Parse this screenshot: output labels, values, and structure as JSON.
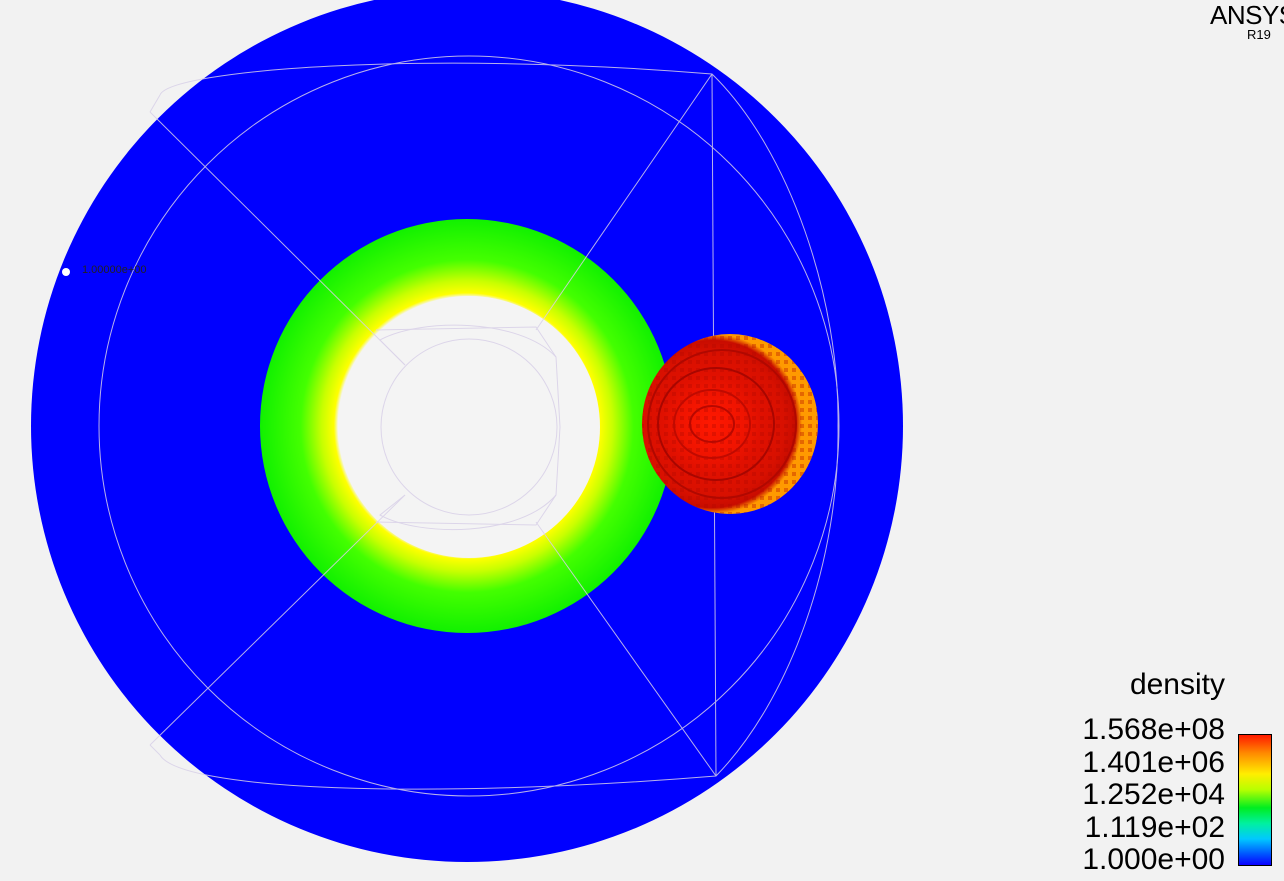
{
  "brand": {
    "name": "ANSYS",
    "version": "R19"
  },
  "legend": {
    "title": "density",
    "labels": [
      "1.568e+08",
      "1.401e+06",
      "1.252e+04",
      "1.119e+02",
      "1.000e+00"
    ]
  },
  "probe": {
    "value": "1.00000e+00"
  },
  "colors": {
    "background": "#f2f2f2",
    "outer_domain": "#0000ff",
    "ring": "#22ff00",
    "ring_inner_edge": "#f0ff00",
    "particle": "#ff1a00",
    "mesh_lines": "#cfc8e0"
  }
}
